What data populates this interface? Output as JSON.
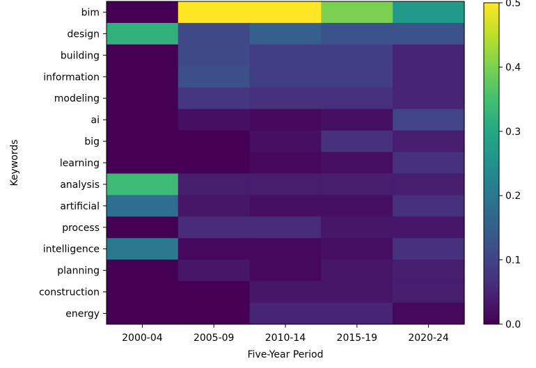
{
  "chart_data": {
    "type": "heatmap",
    "title": "",
    "xlabel": "Five-Year Period",
    "ylabel": "Keywords",
    "x_categories": [
      "2000-04",
      "2005-09",
      "2010-14",
      "2015-19",
      "2020-24"
    ],
    "y_categories": [
      "bim",
      "design",
      "building",
      "information",
      "modeling",
      "ai",
      "big",
      "learning",
      "analysis",
      "artificial",
      "process",
      "intelligence",
      "planning",
      "construction",
      "energy"
    ],
    "values": [
      [
        0.0,
        0.5,
        0.5,
        0.4,
        0.27
      ],
      [
        0.32,
        0.11,
        0.15,
        0.13,
        0.13
      ],
      [
        0.0,
        0.11,
        0.09,
        0.09,
        0.05
      ],
      [
        0.0,
        0.12,
        0.09,
        0.09,
        0.05
      ],
      [
        0.0,
        0.08,
        0.07,
        0.07,
        0.05
      ],
      [
        0.0,
        0.02,
        0.01,
        0.02,
        0.1
      ],
      [
        0.0,
        0.0,
        0.02,
        0.07,
        0.04
      ],
      [
        0.0,
        0.0,
        0.01,
        0.02,
        0.07
      ],
      [
        0.34,
        0.04,
        0.04,
        0.04,
        0.04
      ],
      [
        0.18,
        0.03,
        0.02,
        0.02,
        0.07
      ],
      [
        0.0,
        0.06,
        0.06,
        0.03,
        0.03
      ],
      [
        0.2,
        0.01,
        0.01,
        0.02,
        0.07
      ],
      [
        0.0,
        0.03,
        0.01,
        0.03,
        0.04
      ],
      [
        0.0,
        0.0,
        0.03,
        0.03,
        0.04
      ],
      [
        0.0,
        0.0,
        0.05,
        0.05,
        0.01
      ]
    ],
    "colorbar": {
      "colormap": "viridis",
      "range": [
        0.0,
        0.5
      ],
      "ticks": [
        "0.0",
        "0.1",
        "0.2",
        "0.3",
        "0.4",
        "0.5"
      ]
    },
    "grid": false
  }
}
